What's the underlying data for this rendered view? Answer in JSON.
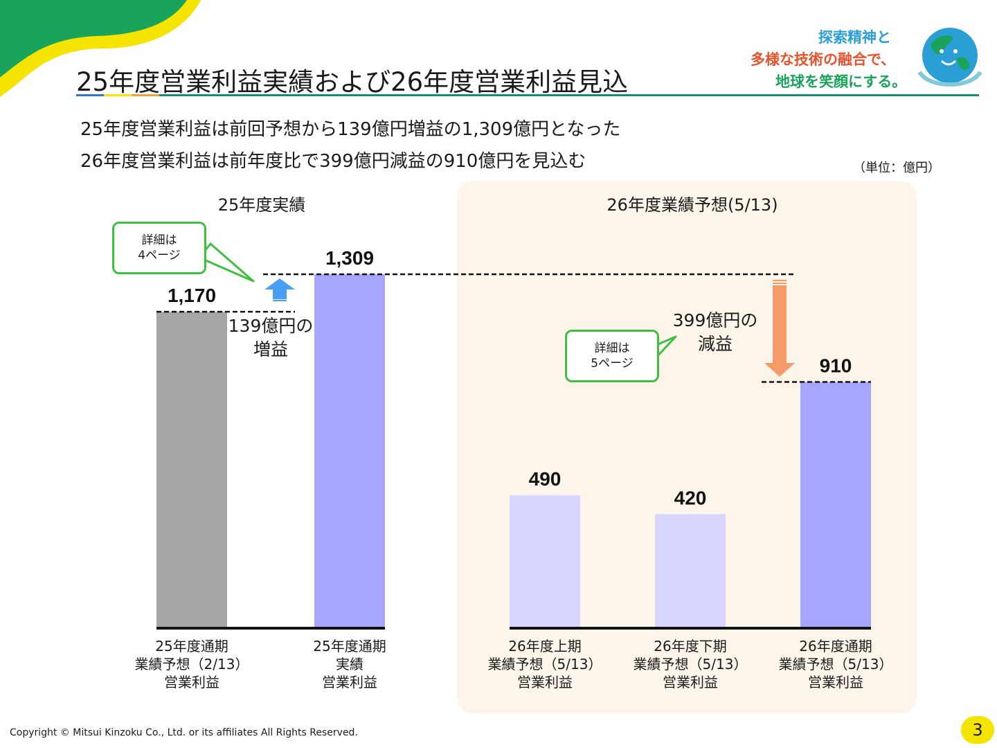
{
  "page": {
    "title": "25年度営業利益実績および26年度営業利益見込",
    "tagline": [
      "探索精神と",
      "多様な技術の融合で、",
      "地球を笑顔にする。"
    ],
    "subtitles": [
      "25年度営業利益は前回予想から139億円増益の1,309億円となった",
      "26年度営業利益は前年度比で399億円減益の910億円を見込む"
    ],
    "unit": "（単位：億円）",
    "copyright": "Copyright © Mitsui Kinzoku Co., Ltd. or its affiliates All Rights Reserved.",
    "page_number": "3"
  },
  "sections": {
    "left_title": "25年度実績",
    "right_title": "26年度業績予想(5/13)"
  },
  "callouts": {
    "left": [
      "詳細は",
      "4ページ"
    ],
    "right": [
      "詳細は",
      "5ページ"
    ]
  },
  "annotations": {
    "increase": [
      "139億円の",
      "増益"
    ],
    "decrease": [
      "399億円の",
      "減益"
    ]
  },
  "chart_data": {
    "type": "bar",
    "categories": [
      [
        "25年度通期",
        "業績予想（2/13）",
        "営業利益"
      ],
      [
        "25年度通期",
        "実績",
        "営業利益"
      ],
      [
        "26年度上期",
        "業績予想（5/13）",
        "営業利益"
      ],
      [
        "26年度下期",
        "業績予想（5/13）",
        "営業利益"
      ],
      [
        "26年度通期",
        "業績予想（5/13）",
        "営業利益"
      ]
    ],
    "values": [
      1170,
      1309,
      490,
      420,
      910
    ],
    "value_labels": [
      "1,170",
      "1,309",
      "490",
      "420",
      "910"
    ],
    "bar_colors": [
      "#a6a6a6",
      "#a6a6ff",
      "#d6d6ff",
      "#d6d6ff",
      "#a6a6ff"
    ],
    "ylim": [
      0,
      1309
    ],
    "grid": false,
    "colors": {
      "increase_arrow": "#4a9ff5",
      "decrease_arrow": "#f79a6a",
      "callout_border": "#3fbf3f",
      "panel_bg": "#fdf5ea",
      "accent_teal": "#1a8a7a",
      "deco_green": "#1aa35a",
      "deco_yellow": "#f5e400"
    }
  }
}
